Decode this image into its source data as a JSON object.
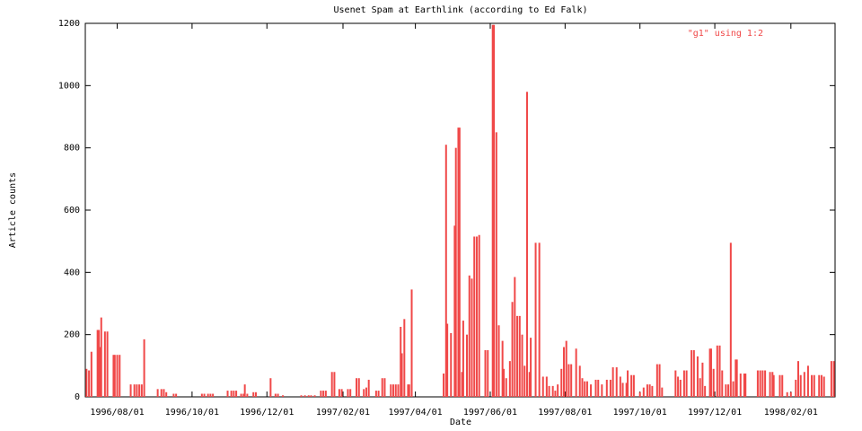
{
  "chart_data": {
    "type": "bar",
    "title": "Usenet Spam at Earthlink (according to Ed Falk)",
    "x_label": "Date",
    "y_label": "Article counts",
    "x": [
      "1996/07/07",
      "1996/07/09",
      "1996/07/11",
      "1996/07/16",
      "1996/07/17",
      "1996/07/18",
      "1996/07/19",
      "1996/07/22",
      "1996/07/24",
      "1996/07/29",
      "1996/07/30",
      "1996/08/01",
      "1996/08/03",
      "1996/08/12",
      "1996/08/15",
      "1996/08/17",
      "1996/08/19",
      "1996/08/21",
      "1996/08/23",
      "1996/09/03",
      "1996/09/06",
      "1996/09/08",
      "1996/09/10",
      "1996/09/16",
      "1996/09/18",
      "1996/10/09",
      "1996/10/11",
      "1996/10/14",
      "1996/10/16",
      "1996/10/18",
      "1996/10/30",
      "1996/11/02",
      "1996/11/04",
      "1996/11/06",
      "1996/11/10",
      "1996/11/12",
      "1996/11/13",
      "1996/11/15",
      "1996/11/20",
      "1996/11/22",
      "1996/12/04",
      "1996/12/08",
      "1996/12/10",
      "1996/12/14",
      "1996/12/29",
      "1997/01/01",
      "1997/01/04",
      "1997/01/06",
      "1997/01/09",
      "1997/01/14",
      "1997/01/16",
      "1997/01/18",
      "1997/01/23",
      "1997/01/25",
      "1997/01/29",
      "1997/01/31",
      "1997/02/05",
      "1997/02/07",
      "1997/02/12",
      "1997/02/14",
      "1997/02/18",
      "1997/02/20",
      "1997/02/22",
      "1997/02/28",
      "1997/03/02",
      "1997/03/05",
      "1997/03/07",
      "1997/03/12",
      "1997/03/14",
      "1997/03/16",
      "1997/03/18",
      "1997/03/20",
      "1997/03/21",
      "1997/03/23",
      "1997/03/26",
      "1997/03/27",
      "1997/03/29",
      "1997/04/24",
      "1997/04/26",
      "1997/04/27",
      "1997/04/30",
      "1997/05/03",
      "1997/05/04",
      "1997/05/06",
      "1997/05/07",
      "1997/05/09",
      "1997/05/10",
      "1997/05/13",
      "1997/05/15",
      "1997/05/17",
      "1997/05/19",
      "1997/05/21",
      "1997/05/23",
      "1997/05/28",
      "1997/05/30",
      "1997/06/03",
      "1997/06/04",
      "1997/06/06",
      "1997/06/08",
      "1997/06/11",
      "1997/06/12",
      "1997/06/14",
      "1997/06/17",
      "1997/06/19",
      "1997/06/21",
      "1997/06/23",
      "1997/06/25",
      "1997/06/27",
      "1997/06/29",
      "1997/07/01",
      "1997/07/03",
      "1997/07/04",
      "1997/07/08",
      "1997/07/11",
      "1997/07/14",
      "1997/07/17",
      "1997/07/19",
      "1997/07/22",
      "1997/07/24",
      "1997/07/26",
      "1997/07/29",
      "1997/07/31",
      "1997/08/02",
      "1997/08/04",
      "1997/08/06",
      "1997/08/10",
      "1997/08/13",
      "1997/08/15",
      "1997/08/17",
      "1997/08/19",
      "1997/08/22",
      "1997/08/26",
      "1997/08/28",
      "1997/08/31",
      "1997/09/04",
      "1997/09/07",
      "1997/09/09",
      "1997/09/12",
      "1997/09/15",
      "1997/09/17",
      "1997/09/20",
      "1997/09/21",
      "1997/09/24",
      "1997/09/26",
      "1997/10/01",
      "1997/10/04",
      "1997/10/07",
      "1997/10/09",
      "1997/10/11",
      "1997/10/15",
      "1997/10/17",
      "1997/10/19",
      "1997/10/30",
      "1997/11/01",
      "1997/11/03",
      "1997/11/06",
      "1997/11/08",
      "1997/11/12",
      "1997/11/14",
      "1997/11/17",
      "1997/11/19",
      "1997/11/21",
      "1997/11/23",
      "1997/11/27",
      "1997/11/28",
      "1997/11/30",
      "1997/12/03",
      "1997/12/05",
      "1997/12/07",
      "1997/12/10",
      "1997/12/12",
      "1997/12/14",
      "1997/12/16",
      "1997/12/18",
      "1997/12/19",
      "1997/12/22",
      "1997/12/25",
      "1997/12/26",
      "1998/01/05",
      "1998/01/07",
      "1998/01/09",
      "1998/01/11",
      "1998/01/15",
      "1998/01/17",
      "1998/01/18",
      "1998/01/23",
      "1998/01/25",
      "1998/01/29",
      "1998/02/01",
      "1998/02/05",
      "1998/02/07",
      "1998/02/09",
      "1998/02/12",
      "1998/02/15",
      "1998/02/18",
      "1998/02/20",
      "1998/02/24",
      "1998/02/26",
      "1998/02/28",
      "1998/03/06",
      "1998/03/08"
    ],
    "series": [
      {
        "name": "\"g1\" using 1:2",
        "color": "#f04848",
        "values": [
          90,
          85,
          145,
          215,
          215,
          160,
          255,
          210,
          210,
          135,
          135,
          135,
          135,
          40,
          40,
          40,
          40,
          40,
          185,
          25,
          25,
          25,
          15,
          10,
          10,
          10,
          10,
          10,
          10,
          10,
          20,
          20,
          20,
          20,
          10,
          10,
          40,
          10,
          15,
          15,
          60,
          10,
          10,
          5,
          5,
          5,
          5,
          5,
          5,
          20,
          20,
          20,
          80,
          80,
          25,
          25,
          25,
          25,
          60,
          60,
          25,
          30,
          55,
          20,
          20,
          60,
          60,
          40,
          40,
          40,
          40,
          225,
          140,
          250,
          40,
          40,
          345,
          75,
          810,
          235,
          205,
          550,
          800,
          865,
          865,
          80,
          245,
          200,
          390,
          380,
          515,
          515,
          520,
          150,
          150,
          1195,
          1195,
          850,
          230,
          180,
          90,
          60,
          115,
          305,
          385,
          260,
          260,
          200,
          100,
          980,
          80,
          190,
          495,
          495,
          65,
          65,
          35,
          35,
          20,
          40,
          90,
          160,
          180,
          105,
          105,
          155,
          100,
          60,
          50,
          50,
          40,
          55,
          55,
          40,
          55,
          55,
          95,
          95,
          65,
          45,
          45,
          85,
          70,
          70,
          15,
          30,
          40,
          40,
          35,
          105,
          105,
          30,
          85,
          65,
          55,
          85,
          85,
          150,
          150,
          130,
          60,
          110,
          35,
          155,
          155,
          90,
          165,
          165,
          85,
          40,
          40,
          495,
          50,
          120,
          120,
          75,
          75,
          75,
          85,
          85,
          85,
          85,
          80,
          80,
          70,
          70,
          70,
          15,
          15,
          55,
          115,
          70,
          80,
          100,
          70,
          70,
          70,
          70,
          65,
          115,
          115
        ]
      }
    ],
    "xlim": [
      "1996/07/06",
      "1998/03/09"
    ],
    "xticks": [
      "1996/08/01",
      "1996/10/01",
      "1996/12/01",
      "1997/02/01",
      "1997/04/01",
      "1997/06/01",
      "1997/08/01",
      "1997/10/01",
      "1997/12/01",
      "1998/02/01"
    ],
    "ylim": [
      0,
      1200
    ],
    "yticks": [
      0,
      200,
      400,
      600,
      800,
      1000,
      1200
    ],
    "legend": "top-right"
  }
}
